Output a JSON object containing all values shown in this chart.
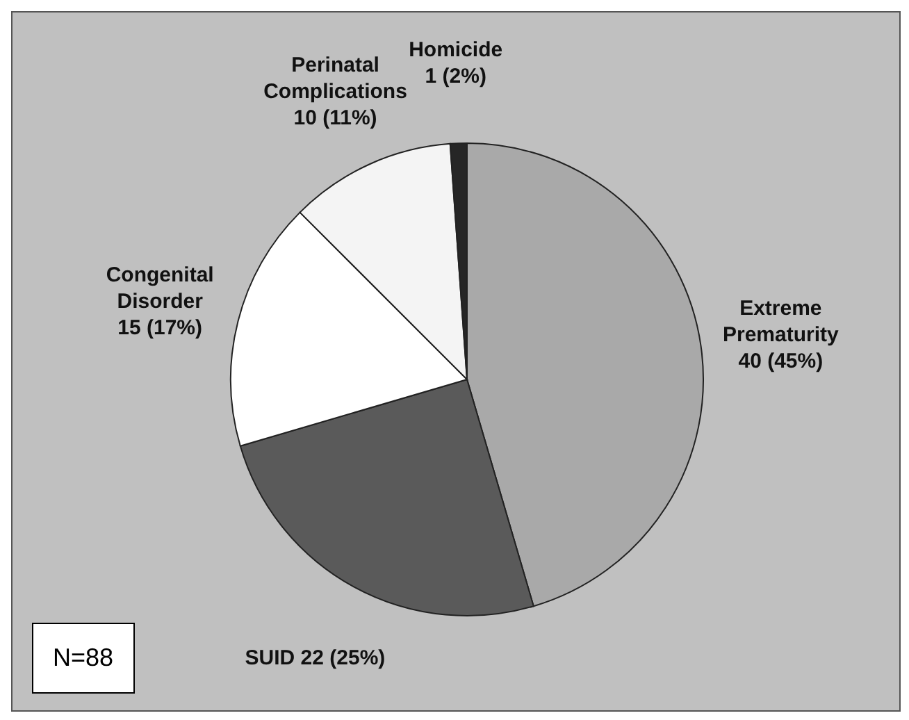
{
  "chart_data": {
    "type": "pie",
    "categories": [
      "Extreme Prematurity",
      "SUID",
      "Congenital Disorder",
      "Perinatal Complications",
      "Homicide"
    ],
    "values": [
      40,
      22,
      15,
      10,
      1
    ],
    "value_labels": [
      "40 (45%)",
      "22 (25%)",
      "15 (17%)",
      "10 (11%)",
      "1 (2%)"
    ],
    "colors": [
      "#a9a9a9",
      "#5a5a5a",
      "#ffffff",
      "#f4f4f4",
      "#262626"
    ],
    "annotations": [
      "N=88"
    ],
    "legend": false
  }
}
